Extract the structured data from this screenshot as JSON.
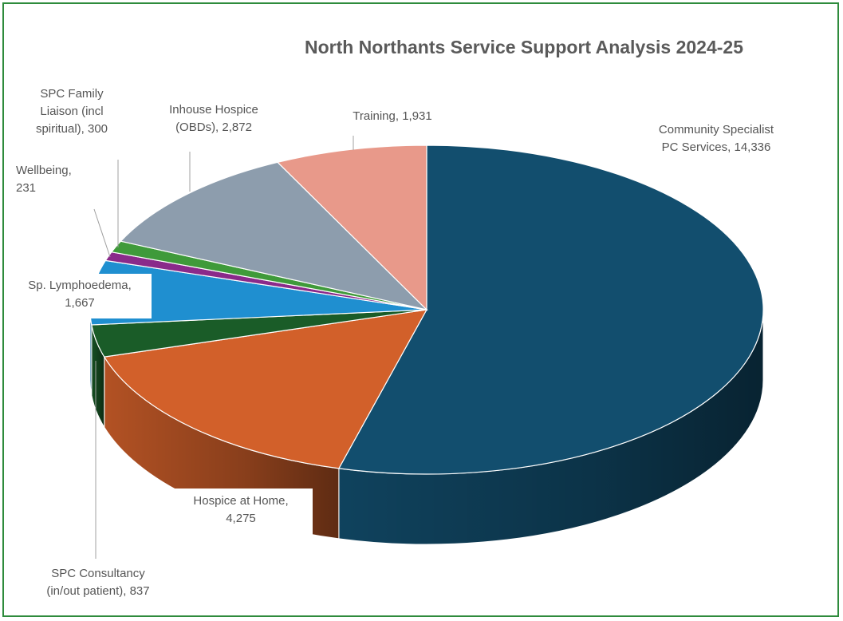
{
  "chart_data": {
    "type": "pie",
    "style": "3d",
    "title": "North Northants Service Support Analysis 2024-25",
    "slices": [
      {
        "label": "Community Specialist PC Services",
        "label_lines": [
          "Community Specialist",
          "PC Services, 14,336"
        ],
        "value": 14336,
        "color": "#124e6e"
      },
      {
        "label": "Hospice at Home",
        "label_lines": [
          "Hospice at Home,",
          "4,275"
        ],
        "value": 4275,
        "color": "#d2602a"
      },
      {
        "label": "SPC Consultancy (in/out patient)",
        "label_lines": [
          "SPC Consultancy",
          "(in/out patient), 837"
        ],
        "value": 837,
        "color": "#1a5c28"
      },
      {
        "label": "Sp. Lymphoedema",
        "label_lines": [
          "Sp. Lymphoedema,",
          "1,667"
        ],
        "value": 1667,
        "color": "#1f8fd0"
      },
      {
        "label": "Wellbeing",
        "label_lines": [
          "Wellbeing,",
          "231"
        ],
        "value": 231,
        "color": "#8a2a8a"
      },
      {
        "label": "SPC Family Liaison (incl spiritual)",
        "label_lines": [
          "SPC Family",
          "Liaison (incl",
          "spiritual), 300"
        ],
        "value": 300,
        "color": "#3f9a3a"
      },
      {
        "label": "Inhouse Hospice (OBDs)",
        "label_lines": [
          "Inhouse Hospice",
          "(OBDs), 2,872"
        ],
        "value": 2872,
        "color": "#8d9dad"
      },
      {
        "label": "Training",
        "label_lines": [
          "Training, 1,931"
        ],
        "value": 1931,
        "color": "#e8998a"
      }
    ]
  }
}
